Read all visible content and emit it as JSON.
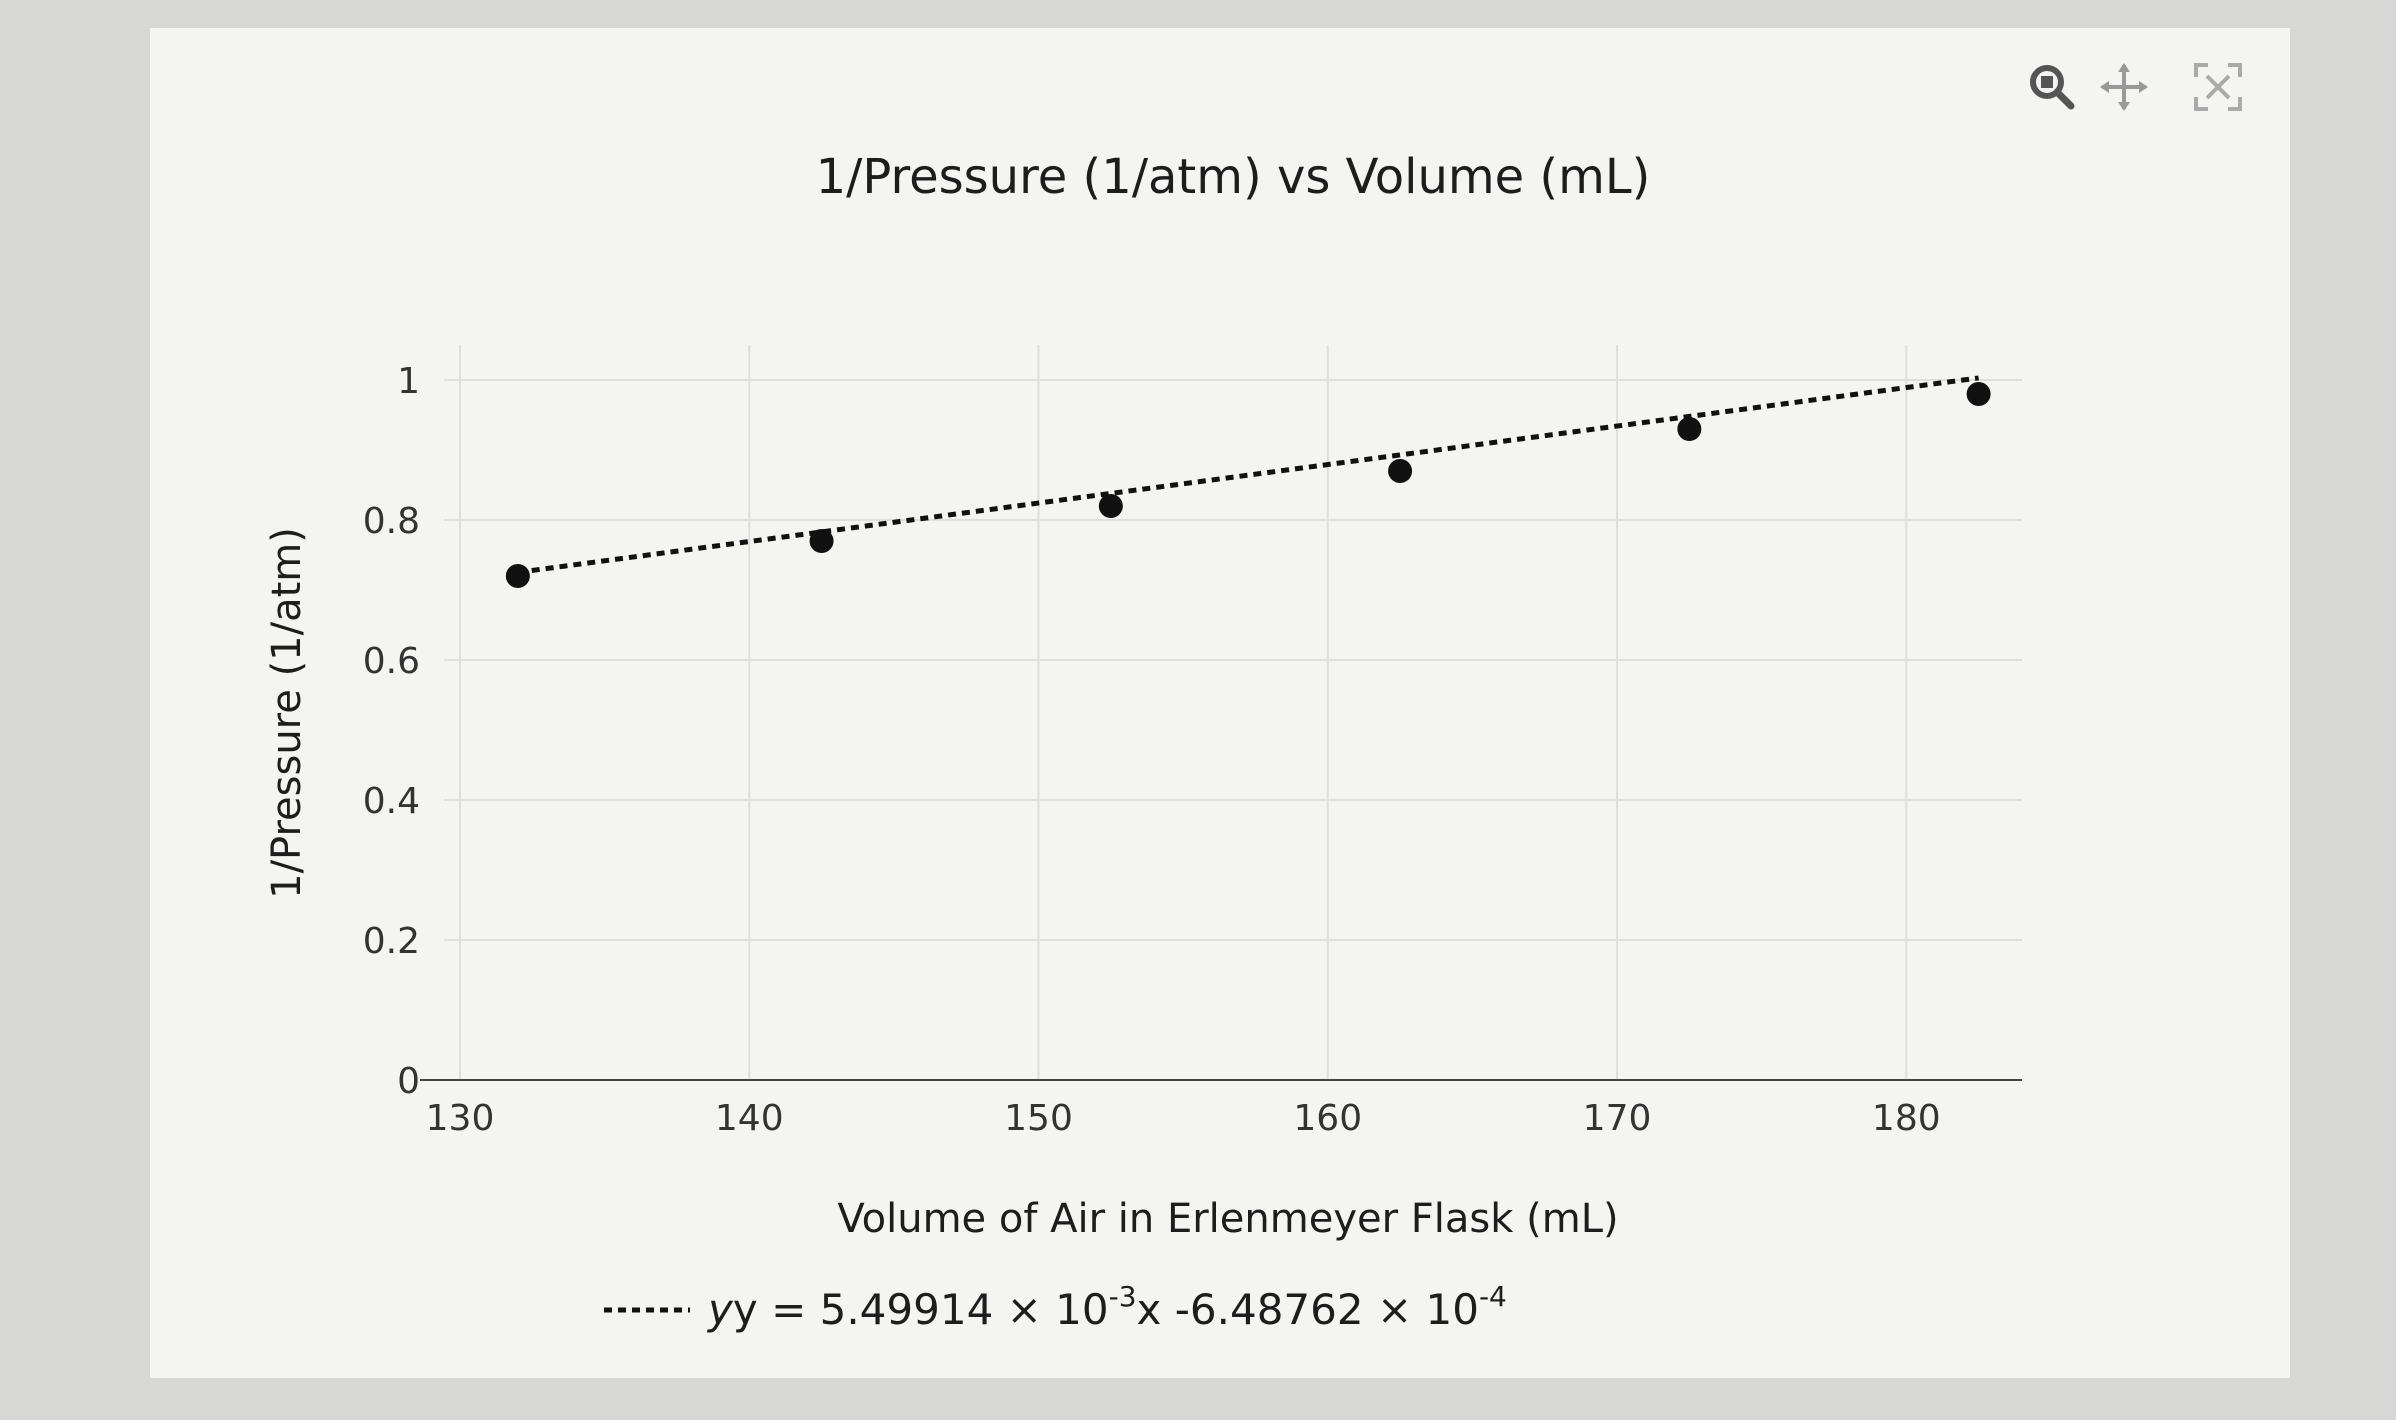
{
  "toolbar": {
    "icons": [
      "zoom-icon",
      "pan-icon",
      "fullscreen-icon"
    ]
  },
  "chart_data": {
    "type": "scatter",
    "title": "1/Pressure (1/atm) vs Volume (mL)",
    "xlabel": "Volume of Air in Erlenmeyer Flask (mL)",
    "ylabel": "1/Pressure (1/atm)",
    "xlim": [
      130,
      184
    ],
    "ylim": [
      0,
      1.05
    ],
    "xticks": [
      "130",
      "140",
      "150",
      "160",
      "170",
      "180"
    ],
    "yticks": [
      "0",
      "0.2",
      "0.4",
      "0.6",
      "0.8",
      "1"
    ],
    "grid": true,
    "series": [
      {
        "x": [
          132,
          142.5,
          152.5,
          162.5,
          172.5,
          182.5
        ],
        "y": [
          0.72,
          0.77,
          0.82,
          0.87,
          0.93,
          0.98
        ]
      }
    ],
    "trendline": {
      "style": "dotted",
      "slope": 0.00549914,
      "intercept": -0.000648762,
      "legend": {
        "prefix": "y = 5.49914 × 10",
        "exp1": "-3",
        "middle": "x -6.48762 × 10",
        "exp2": "-4"
      }
    },
    "colors": {
      "marker": "#111111",
      "grid": "#dedede",
      "axis": "#444444"
    }
  }
}
